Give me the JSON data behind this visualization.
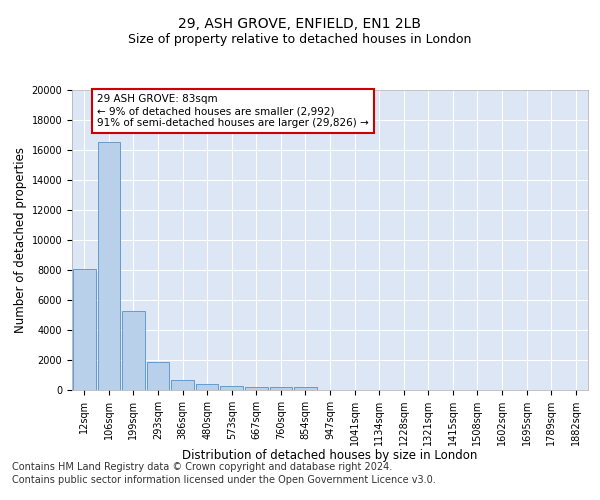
{
  "title": "29, ASH GROVE, ENFIELD, EN1 2LB",
  "subtitle": "Size of property relative to detached houses in London",
  "xlabel": "Distribution of detached houses by size in London",
  "ylabel": "Number of detached properties",
  "categories": [
    "12sqm",
    "106sqm",
    "199sqm",
    "293sqm",
    "386sqm",
    "480sqm",
    "573sqm",
    "667sqm",
    "760sqm",
    "854sqm",
    "947sqm",
    "1041sqm",
    "1134sqm",
    "1228sqm",
    "1321sqm",
    "1415sqm",
    "1508sqm",
    "1602sqm",
    "1695sqm",
    "1789sqm",
    "1882sqm"
  ],
  "bar_heights": [
    8100,
    16500,
    5300,
    1850,
    700,
    380,
    270,
    220,
    200,
    170,
    0,
    0,
    0,
    0,
    0,
    0,
    0,
    0,
    0,
    0,
    0
  ],
  "bar_color": "#b8d0ea",
  "bar_edge_color": "#5590c8",
  "annotation_text": "29 ASH GROVE: 83sqm\n← 9% of detached houses are smaller (2,992)\n91% of semi-detached houses are larger (29,826) →",
  "annotation_box_color": "#ffffff",
  "annotation_box_edge": "#cc0000",
  "ylim": [
    0,
    20000
  ],
  "yticks": [
    0,
    2000,
    4000,
    6000,
    8000,
    10000,
    12000,
    14000,
    16000,
    18000,
    20000
  ],
  "background_color": "#dce6f5",
  "footer_line1": "Contains HM Land Registry data © Crown copyright and database right 2024.",
  "footer_line2": "Contains public sector information licensed under the Open Government Licence v3.0.",
  "title_fontsize": 10,
  "subtitle_fontsize": 9,
  "axis_label_fontsize": 8.5,
  "tick_fontsize": 7,
  "footer_fontsize": 7,
  "annot_fontsize": 7.5
}
